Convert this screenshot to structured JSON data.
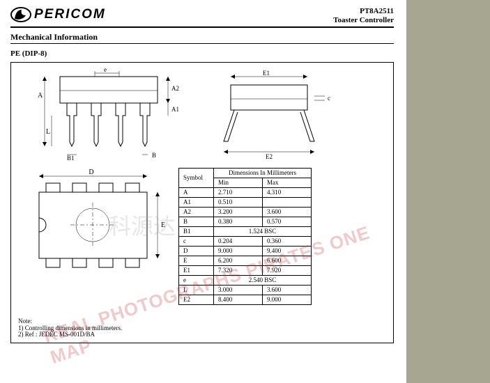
{
  "header": {
    "brand": "PERICOM",
    "part_number": "PT8A2511",
    "subtitle": "Toaster Controller"
  },
  "section_title": "Mechanical Information",
  "package_name": "PE (DIP-8)",
  "drawing": {
    "labels": {
      "A": "A",
      "A1": "A1",
      "A2": "A2",
      "B": "B",
      "B1": "B1",
      "c": "c",
      "D": "D",
      "e": "e",
      "E": "E",
      "E1": "E1",
      "E2": "E2",
      "L": "L"
    },
    "stroke": "#000000",
    "fill": "#ffffff"
  },
  "dim_table": {
    "header_top": "Dimensions In Millimeters",
    "col_symbol": "Symbol",
    "col_min": "Min",
    "col_max": "Max",
    "rows": [
      {
        "sym": "A",
        "min": "2.710",
        "max": "4.310"
      },
      {
        "sym": "A1",
        "min": "0.510",
        "max": ""
      },
      {
        "sym": "A2",
        "min": "3.200",
        "max": "3.600"
      },
      {
        "sym": "B",
        "min": "0.380",
        "max": "0.570"
      },
      {
        "sym": "B1",
        "min": "1.524 BSC",
        "max": "",
        "span": true
      },
      {
        "sym": "c",
        "min": "0.204",
        "max": "0.360"
      },
      {
        "sym": "D",
        "min": "9.000",
        "max": "9.400"
      },
      {
        "sym": "E",
        "min": "6.200",
        "max": "6.600"
      },
      {
        "sym": "E1",
        "min": "7.320",
        "max": "7.920"
      },
      {
        "sym": "e",
        "min": "2.540 BSC",
        "max": "",
        "span": true
      },
      {
        "sym": "L",
        "min": "3.000",
        "max": "3.600"
      },
      {
        "sym": "E2",
        "min": "8.400",
        "max": "9.000"
      }
    ]
  },
  "notes": {
    "title": "Note:",
    "n1": "1) Controlling dimensions in millimeters.",
    "n2": "2) Ref : JEDEC MS-001D/BA"
  },
  "watermark1": "REAL PHOTOGRAPHS PIRATES ONE MAP",
  "watermark2": "科源达"
}
